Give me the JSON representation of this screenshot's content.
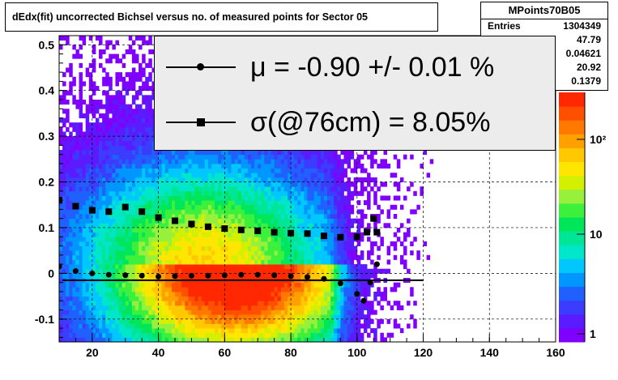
{
  "title": "dEdx(fit) uncorrected Bichsel versus no. of measured points for Sector 05",
  "stats": {
    "name": "MPoints70B05",
    "rows": [
      {
        "label": "Entries",
        "value": "1304349"
      },
      {
        "label": "",
        "value": "47.79"
      },
      {
        "label": "",
        "value": "0.04621"
      },
      {
        "label": "",
        "value": "20.92"
      },
      {
        "label": "",
        "value": "0.1379"
      }
    ]
  },
  "legend": {
    "mu_text": "μ  = -0.90 +/-  0.01 %",
    "sigma_text": "σ(@76cm) =  8.05%"
  },
  "colorbar": {
    "ticks": [
      "1",
      "10",
      "10²"
    ],
    "colors": [
      "#7f00ff",
      "#5a1cff",
      "#3c3cff",
      "#2060ff",
      "#0096ff",
      "#00c8ff",
      "#00e6c8",
      "#00e696",
      "#00e65a",
      "#3cf03c",
      "#96f03c",
      "#d2f000",
      "#ffe600",
      "#ffc800",
      "#ffa000",
      "#ff7800",
      "#ff5000",
      "#ff2800"
    ]
  },
  "chart_data": {
    "type": "heatmap",
    "title": "dEdx(fit) uncorrected Bichsel versus no. of measured points for Sector 05",
    "xlabel": "",
    "ylabel": "",
    "xlim": [
      10,
      160
    ],
    "ylim": [
      -0.15,
      0.52
    ],
    "x_ticks": [
      20,
      40,
      60,
      80,
      100,
      120,
      140,
      160
    ],
    "y_ticks": [
      -0.1,
      0,
      0.1,
      0.2,
      0.3,
      0.4,
      0.5
    ],
    "grid": true,
    "z_scale": "log",
    "hotspot": {
      "x": 63,
      "y": 0.02
    },
    "series": [
      {
        "name": "μ",
        "marker": "circle",
        "x": [
          10,
          15,
          20,
          25,
          30,
          35,
          40,
          45,
          50,
          55,
          60,
          65,
          70,
          75,
          80,
          85,
          90,
          95,
          100,
          102,
          104,
          106
        ],
        "y": [
          0.015,
          0.005,
          0.0,
          -0.003,
          -0.004,
          -0.005,
          -0.007,
          -0.006,
          -0.005,
          -0.005,
          -0.004,
          -0.003,
          -0.003,
          -0.004,
          -0.006,
          -0.008,
          -0.012,
          -0.022,
          -0.045,
          -0.06,
          -0.02,
          0.02
        ]
      },
      {
        "name": "σ(@76cm)",
        "marker": "square",
        "x": [
          10,
          15,
          20,
          25,
          30,
          35,
          40,
          45,
          50,
          55,
          60,
          65,
          70,
          75,
          80,
          85,
          90,
          95,
          100,
          103,
          105,
          106
        ],
        "y": [
          0.16,
          0.147,
          0.138,
          0.135,
          0.145,
          0.135,
          0.122,
          0.115,
          0.108,
          0.102,
          0.098,
          0.095,
          0.093,
          0.09,
          0.088,
          0.087,
          0.082,
          0.079,
          0.08,
          0.09,
          0.12,
          0.09
        ]
      }
    ],
    "fit_line": {
      "x": [
        11,
        120
      ],
      "y": [
        -0.015,
        -0.015
      ]
    }
  }
}
